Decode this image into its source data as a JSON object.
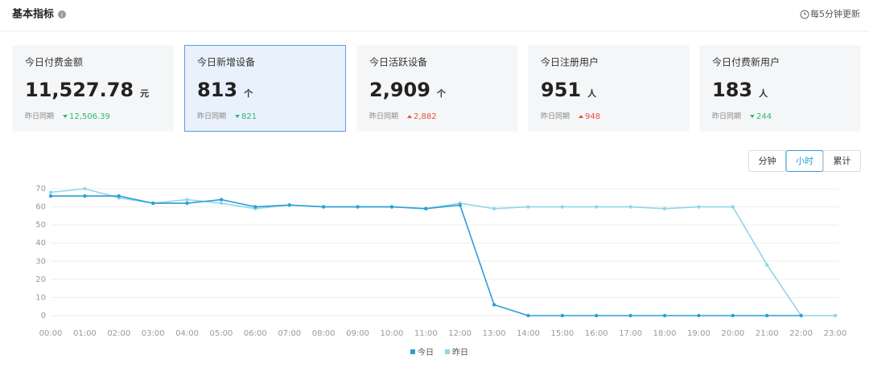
{
  "header": {
    "title": "基本指标",
    "update_note": "每5分钟更新"
  },
  "cards": [
    {
      "title": "今日付费金额",
      "value": "11,527.78",
      "unit": "元",
      "compare_label": "昨日同期",
      "compare_value": "12,506.39",
      "trend": "down",
      "active": false
    },
    {
      "title": "今日新增设备",
      "value": "813",
      "unit": "个",
      "compare_label": "昨日同期",
      "compare_value": "821",
      "trend": "down",
      "active": true
    },
    {
      "title": "今日活跃设备",
      "value": "2,909",
      "unit": "个",
      "compare_label": "昨日同期",
      "compare_value": "2,882",
      "trend": "up",
      "active": false
    },
    {
      "title": "今日注册用户",
      "value": "951",
      "unit": "人",
      "compare_label": "昨日同期",
      "compare_value": "948",
      "trend": "up",
      "active": false
    },
    {
      "title": "今日付费新用户",
      "value": "183",
      "unit": "人",
      "compare_label": "昨日同期",
      "compare_value": "244",
      "trend": "down",
      "active": false
    }
  ],
  "buttons": [
    {
      "label": "分钟",
      "active": false
    },
    {
      "label": "小时",
      "active": true
    },
    {
      "label": "累计",
      "active": false
    }
  ],
  "chart_data": {
    "type": "line",
    "categories": [
      "00:00",
      "01:00",
      "02:00",
      "03:00",
      "04:00",
      "05:00",
      "06:00",
      "07:00",
      "08:00",
      "09:00",
      "10:00",
      "11:00",
      "12:00",
      "13:00",
      "14:00",
      "15:00",
      "16:00",
      "17:00",
      "18:00",
      "19:00",
      "20:00",
      "21:00",
      "22:00",
      "23:00"
    ],
    "series": [
      {
        "name": "今日",
        "color": "#2a9fd8",
        "values": [
          66,
          66,
          66,
          62,
          62,
          64,
          60,
          61,
          60,
          60,
          60,
          59,
          61,
          6,
          0,
          0,
          0,
          0,
          0,
          0,
          0,
          0,
          0,
          null
        ]
      },
      {
        "name": "昨日",
        "color": "#91d5ea",
        "values": [
          68,
          70,
          65,
          62,
          64,
          62,
          59,
          61,
          60,
          60,
          60,
          59,
          62,
          59,
          60,
          60,
          60,
          60,
          59,
          60,
          60,
          28,
          0,
          0
        ]
      }
    ],
    "ylim": [
      0,
      70
    ],
    "yticks": [
      0,
      10,
      20,
      30,
      40,
      50,
      60,
      70
    ],
    "grid": true
  }
}
